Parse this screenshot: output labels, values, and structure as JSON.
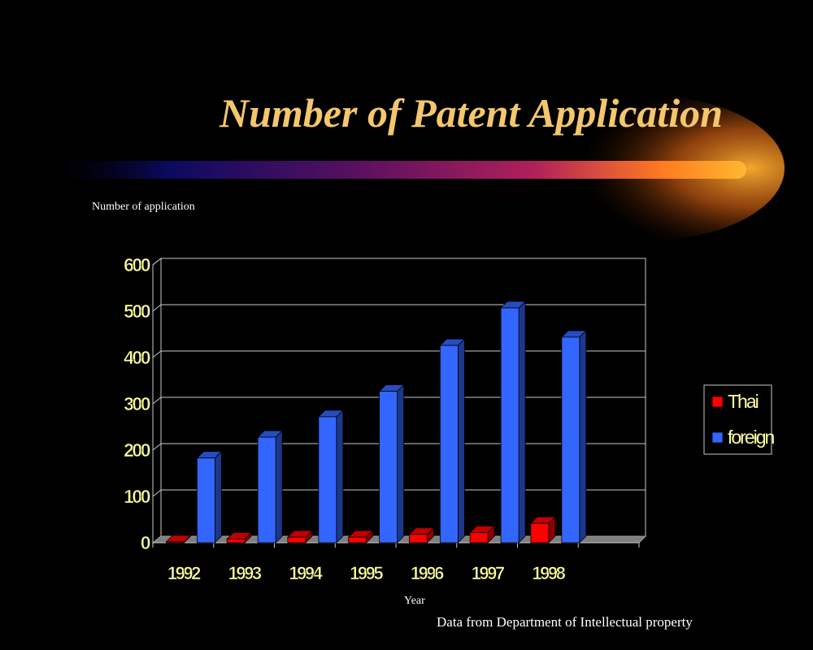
{
  "slide": {
    "title": "Number of Patent Application",
    "source_note": "Data from Department of Intellectual property"
  },
  "colors": {
    "title": "#F4C76C",
    "thai": "#FF0000",
    "foreign": "#3366FF",
    "axis_text": "#FFFF99",
    "background": "#000000"
  },
  "chart_data": {
    "type": "bar",
    "title": "",
    "xlabel": "Year",
    "ylabel": "Number of application",
    "categories": [
      "1992",
      "1993",
      "1994",
      "1995",
      "1996",
      "1997",
      "1998"
    ],
    "series": [
      {
        "name": "Thai",
        "values": [
          2,
          8,
          12,
          12,
          18,
          22,
          42
        ]
      },
      {
        "name": "foreign",
        "values": [
          183,
          228,
          272,
          327,
          426,
          507,
          444
        ]
      }
    ],
    "ylim": [
      0,
      600
    ],
    "yticks": [
      "0",
      "100",
      "200",
      "300",
      "400",
      "500",
      "600"
    ],
    "grid": true,
    "legend_position": "right",
    "style": "3d-clustered-column"
  }
}
